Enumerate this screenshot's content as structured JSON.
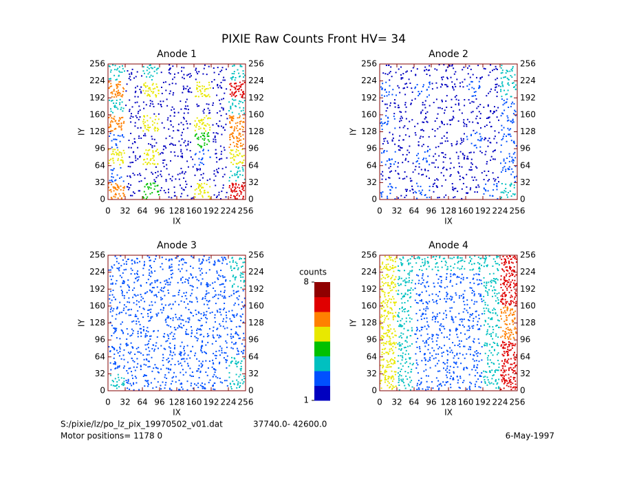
{
  "title": "PIXIE Raw Counts Front HV= 34",
  "chart_data": [
    {
      "type": "heatmap",
      "title": "Anode 1",
      "xlabel": "IX",
      "ylabel": "IY",
      "xlim": [
        0,
        256
      ],
      "ylim": [
        0,
        256
      ],
      "xticks": [
        0,
        32,
        64,
        96,
        128,
        160,
        192,
        224,
        256
      ],
      "yticks": [
        0,
        32,
        64,
        96,
        128,
        160,
        192,
        224,
        256
      ],
      "values": [
        [
          6,
          1,
          4,
          1,
          1,
          5,
          1,
          7
        ],
        [
          2,
          1,
          1,
          1,
          1,
          1,
          1,
          3
        ],
        [
          5,
          1,
          5,
          1,
          1,
          2,
          1,
          5
        ],
        [
          2,
          1,
          1,
          1,
          1,
          4,
          1,
          6
        ],
        [
          6,
          1,
          5,
          1,
          1,
          5,
          1,
          6
        ],
        [
          3,
          1,
          1,
          1,
          1,
          1,
          1,
          3
        ],
        [
          6,
          1,
          5,
          1,
          1,
          5,
          1,
          7
        ],
        [
          3,
          1,
          3,
          1,
          1,
          1,
          1,
          3
        ]
      ]
    },
    {
      "type": "heatmap",
      "title": "Anode 2",
      "xlabel": "IX",
      "ylabel": "IY",
      "xlim": [
        0,
        256
      ],
      "ylim": [
        0,
        256
      ],
      "xticks": [
        0,
        32,
        64,
        96,
        128,
        160,
        192,
        224,
        256
      ],
      "yticks": [
        0,
        32,
        64,
        96,
        128,
        160,
        192,
        224,
        256
      ],
      "values": [
        [
          2,
          1,
          2,
          1,
          1,
          1,
          2,
          3
        ],
        [
          1,
          1,
          1,
          1,
          1,
          1,
          1,
          2
        ],
        [
          2,
          1,
          2,
          1,
          1,
          1,
          1,
          2
        ],
        [
          1,
          1,
          1,
          1,
          1,
          2,
          1,
          2
        ],
        [
          2,
          1,
          1,
          1,
          1,
          1,
          1,
          2
        ],
        [
          1,
          1,
          1,
          1,
          1,
          1,
          1,
          2
        ],
        [
          2,
          1,
          2,
          1,
          1,
          2,
          1,
          3
        ],
        [
          1,
          1,
          1,
          1,
          1,
          1,
          1,
          3
        ]
      ]
    },
    {
      "type": "heatmap",
      "title": "Anode 3",
      "xlabel": "IX",
      "ylabel": "IY",
      "xlim": [
        0,
        256
      ],
      "ylim": [
        0,
        256
      ],
      "xticks": [
        0,
        32,
        64,
        96,
        128,
        160,
        192,
        224,
        256
      ],
      "yticks": [
        0,
        32,
        64,
        96,
        128,
        160,
        192,
        224,
        256
      ],
      "values": [
        [
          3,
          2,
          2,
          2,
          2,
          2,
          2,
          3
        ],
        [
          2,
          2,
          2,
          2,
          2,
          2,
          2,
          3
        ],
        [
          2,
          2,
          2,
          2,
          2,
          2,
          2,
          2
        ],
        [
          2,
          2,
          2,
          2,
          2,
          2,
          2,
          2
        ],
        [
          2,
          2,
          2,
          2,
          2,
          2,
          2,
          2
        ],
        [
          2,
          2,
          2,
          2,
          2,
          2,
          2,
          2
        ],
        [
          2,
          2,
          2,
          2,
          2,
          2,
          2,
          3
        ],
        [
          2,
          2,
          2,
          2,
          2,
          2,
          2,
          3
        ]
      ]
    },
    {
      "type": "heatmap",
      "title": "Anode 4",
      "xlabel": "IX",
      "ylabel": "IY",
      "xlim": [
        0,
        256
      ],
      "ylim": [
        0,
        256
      ],
      "xticks": [
        0,
        32,
        64,
        96,
        128,
        160,
        192,
        224,
        256
      ],
      "yticks": [
        0,
        32,
        64,
        96,
        128,
        160,
        192,
        224,
        256
      ],
      "values": [
        [
          5,
          3,
          2,
          2,
          2,
          2,
          3,
          7
        ],
        [
          5,
          3,
          2,
          2,
          2,
          2,
          3,
          7
        ],
        [
          5,
          3,
          2,
          2,
          2,
          2,
          3,
          7
        ],
        [
          5,
          3,
          2,
          2,
          2,
          2,
          3,
          6
        ],
        [
          5,
          3,
          2,
          2,
          2,
          2,
          3,
          6
        ],
        [
          5,
          3,
          2,
          2,
          2,
          2,
          3,
          7
        ],
        [
          5,
          3,
          2,
          2,
          2,
          2,
          3,
          7
        ],
        [
          5,
          3,
          3,
          3,
          3,
          3,
          3,
          7
        ]
      ]
    }
  ],
  "colorbar": {
    "title": "counts",
    "lim": [
      1,
      8
    ],
    "ticks": [
      1,
      8
    ],
    "colors": [
      "#0000c0",
      "#0050ff",
      "#00c0c0",
      "#00c000",
      "#e8e800",
      "#ff8000",
      "#e00000",
      "#900000"
    ]
  },
  "footer": {
    "file": "S:/pixie/lz/po_lz_pix_19970502_v01.dat",
    "range": "37740.0- 42600.0",
    "motor": "Motor positions= 1178 0",
    "date": "6-May-1997"
  }
}
